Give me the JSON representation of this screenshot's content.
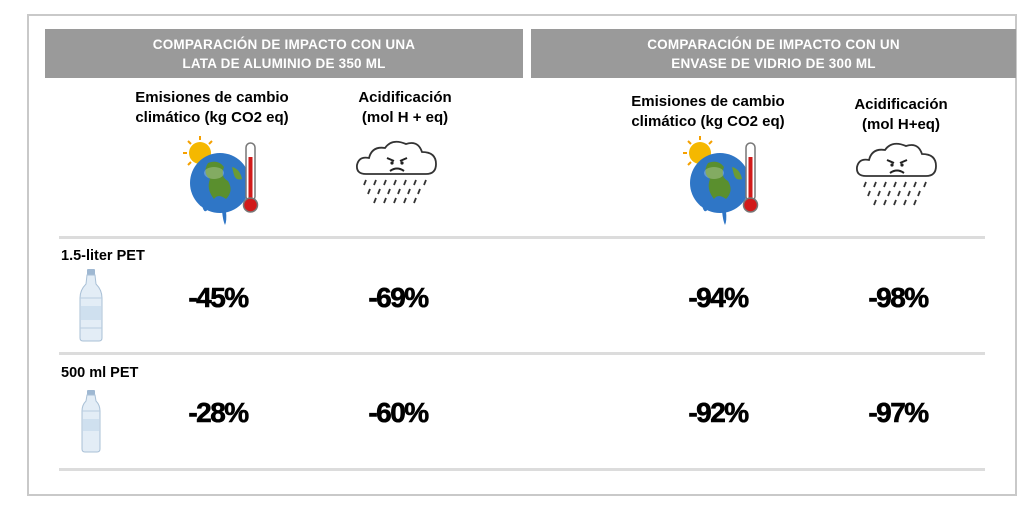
{
  "sections": [
    {
      "title_line1": "COMPARACIÓN DE IMPACTO CON UNA",
      "title_line2": "LATA DE ALUMINIO DE 350 ML"
    },
    {
      "title_line1": "COMPARACIÓN DE IMPACTO CON UN",
      "title_line2": "ENVASE DE VIDRIO DE 300 ML"
    }
  ],
  "columns": [
    {
      "line1": "Emisiones de cambio",
      "line2": "climático (kg CO2 eq)",
      "icon": "climate-globe-thermometer-icon"
    },
    {
      "line1": "Acidificación",
      "line2": "(mol H + eq)",
      "icon": "acid-rain-cloud-icon"
    },
    {
      "line1": "Emisiones de cambio",
      "line2": "climático (kg CO2 eq)",
      "icon": "climate-globe-thermometer-icon"
    },
    {
      "line1": "Acidificación",
      "line2": "(mol H+eq)",
      "icon": "acid-rain-cloud-icon"
    }
  ],
  "rows": [
    {
      "label": "1.5-liter PET",
      "icon": "large-pet-bottle-icon",
      "values": [
        "-45%",
        "-69%",
        "-94%",
        "-98%"
      ]
    },
    {
      "label": "500 ml PET",
      "icon": "small-pet-bottle-icon",
      "values": [
        "-28%",
        "-60%",
        "-92%",
        "-97%"
      ]
    }
  ],
  "colors": {
    "banner": "#9a9a9a",
    "divider": "#dcdcdc",
    "frame": "#c9c9c9"
  }
}
